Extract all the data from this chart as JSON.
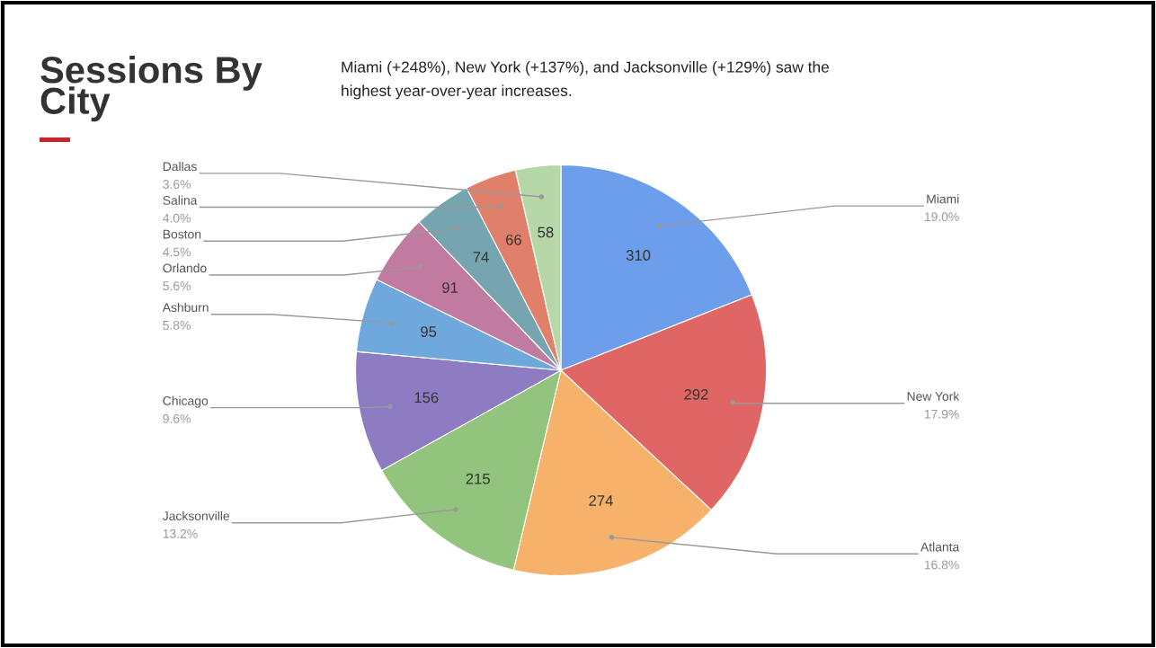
{
  "chart_data": {
    "type": "pie",
    "title": "Sessions By\nCity",
    "subtitle": "Miami (+248%), New York (+137%), and Jacksonville (+129%) saw the\nhighest year-over-year increases.",
    "categories": [
      "Miami",
      "New York",
      "Atlanta",
      "Jacksonville",
      "Chicago",
      "Ashburn",
      "Orlando",
      "Boston",
      "Salina",
      "Dallas"
    ],
    "values": [
      310,
      292,
      274,
      215,
      156,
      95,
      91,
      74,
      66,
      58
    ],
    "annotations": [
      "19.0%",
      "17.9%",
      "16.8%",
      "13.2%",
      "9.6%",
      "5.8%",
      "5.6%",
      "4.5%",
      "4.0%",
      "3.6%"
    ],
    "colors": [
      "#6d9eeb",
      "#e06666",
      "#f6b26b",
      "#93c47d",
      "#8e7cc3",
      "#6fa8dc",
      "#c27ba0",
      "#76a5af",
      "#e0806a",
      "#b6d7a8"
    ],
    "data_labels": true
  }
}
